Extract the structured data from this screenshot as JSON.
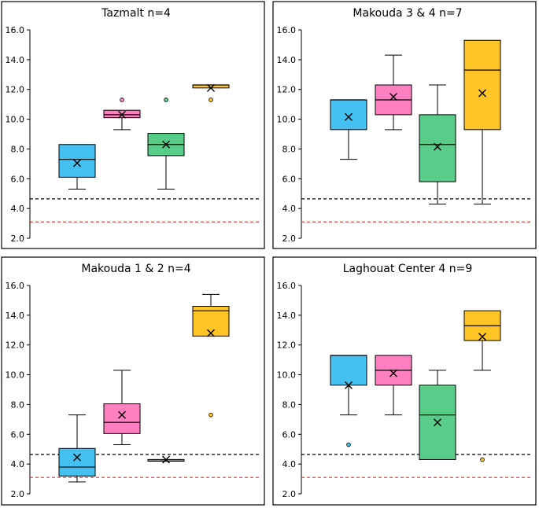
{
  "chart_data": [
    {
      "type": "box",
      "title": "Tazmalt n=4",
      "ylim": [
        2.0,
        16.0
      ],
      "yticks": [
        "2.0",
        "4.0",
        "6.0",
        "8.0",
        "10.0",
        "12.0",
        "14.0",
        "16.0"
      ],
      "reference_lines": [
        {
          "value": 4.65,
          "color": "#000000"
        },
        {
          "value": 3.1,
          "color": "#e8241f"
        }
      ],
      "boxes": [
        {
          "color": "#44c1f0",
          "whisker_low": 5.3,
          "q1": 6.1,
          "median": 7.3,
          "q3": 8.3,
          "whisker_high": 8.3,
          "mean": 7.05,
          "outliers": []
        },
        {
          "color": "#ff80c0",
          "whisker_low": 9.3,
          "q1": 10.1,
          "median": 10.3,
          "q3": 10.6,
          "whisker_high": 10.6,
          "mean": 10.3,
          "outliers": [
            11.3
          ]
        },
        {
          "color": "#58cc88",
          "whisker_low": 5.3,
          "q1": 7.55,
          "median": 8.3,
          "q3": 9.05,
          "whisker_high": 9.05,
          "mean": 8.3,
          "outliers": [
            11.3
          ]
        },
        {
          "color": "#ffc526",
          "whisker_low": 12.1,
          "q1": 12.1,
          "median": 12.3,
          "q3": 12.3,
          "whisker_high": 12.3,
          "mean": 12.1,
          "outliers": [
            11.3
          ]
        }
      ]
    },
    {
      "type": "box",
      "title": "Makouda 3 & 4 n=7",
      "ylim": [
        2.0,
        16.0
      ],
      "yticks": [
        "2.0",
        "4.0",
        "6.0",
        "8.0",
        "10.0",
        "12.0",
        "14.0",
        "16.0"
      ],
      "reference_lines": [
        {
          "value": 4.65,
          "color": "#000000"
        },
        {
          "value": 3.1,
          "color": "#e8241f"
        }
      ],
      "boxes": [
        {
          "color": "#44c1f0",
          "whisker_low": 7.3,
          "q1": 9.3,
          "median": 11.3,
          "q3": 11.3,
          "whisker_high": 11.3,
          "mean": 10.15,
          "outliers": []
        },
        {
          "color": "#ff80c0",
          "whisker_low": 9.3,
          "q1": 10.3,
          "median": 11.3,
          "q3": 12.3,
          "whisker_high": 14.3,
          "mean": 11.5,
          "outliers": []
        },
        {
          "color": "#58cc88",
          "whisker_low": 4.3,
          "q1": 5.8,
          "median": 8.3,
          "q3": 10.3,
          "whisker_high": 12.3,
          "mean": 8.15,
          "outliers": []
        },
        {
          "color": "#ffc526",
          "whisker_low": 4.3,
          "q1": 9.3,
          "median": 13.3,
          "q3": 15.3,
          "whisker_high": 15.3,
          "mean": 11.75,
          "outliers": []
        }
      ]
    },
    {
      "type": "box",
      "title": "Makouda 1 & 2 n=4",
      "ylim": [
        2.0,
        16.0
      ],
      "yticks": [
        "2.0",
        "4.0",
        "6.0",
        "8.0",
        "10.0",
        "12.0",
        "14.0",
        "16.0"
      ],
      "reference_lines": [
        {
          "value": 4.65,
          "color": "#000000"
        },
        {
          "value": 3.1,
          "color": "#e8241f"
        }
      ],
      "boxes": [
        {
          "color": "#44c1f0",
          "whisker_low": 2.8,
          "q1": 3.2,
          "median": 3.8,
          "q3": 5.05,
          "whisker_high": 7.3,
          "mean": 4.45,
          "outliers": []
        },
        {
          "color": "#ff80c0",
          "whisker_low": 5.3,
          "q1": 6.05,
          "median": 6.8,
          "q3": 8.05,
          "whisker_high": 10.3,
          "mean": 7.3,
          "outliers": []
        },
        {
          "color": "#58cc88",
          "whisker_low": 4.3,
          "q1": 4.3,
          "median": 4.3,
          "q3": 4.3,
          "whisker_high": 4.3,
          "mean": 4.3,
          "outliers": []
        },
        {
          "color": "#ffc526",
          "whisker_low": 12.6,
          "q1": 12.6,
          "median": 14.3,
          "q3": 14.6,
          "whisker_high": 15.4,
          "mean": 12.8,
          "outliers": [
            7.3
          ]
        }
      ]
    },
    {
      "type": "box",
      "title": "Laghouat Center 4 n=9",
      "ylim": [
        2.0,
        16.0
      ],
      "yticks": [
        "2.0",
        "4.0",
        "6.0",
        "8.0",
        "10.0",
        "12.0",
        "14.0",
        "16.0"
      ],
      "reference_lines": [
        {
          "value": 4.65,
          "color": "#000000"
        },
        {
          "value": 3.1,
          "color": "#e8241f"
        }
      ],
      "boxes": [
        {
          "color": "#44c1f0",
          "whisker_low": 7.3,
          "q1": 9.3,
          "median": 11.3,
          "q3": 11.3,
          "whisker_high": 11.3,
          "mean": 9.3,
          "outliers": [
            5.3
          ]
        },
        {
          "color": "#ff80c0",
          "whisker_low": 7.3,
          "q1": 9.3,
          "median": 10.3,
          "q3": 11.3,
          "whisker_high": 11.3,
          "mean": 10.1,
          "outliers": []
        },
        {
          "color": "#58cc88",
          "whisker_low": 4.3,
          "q1": 4.3,
          "median": 7.3,
          "q3": 9.3,
          "whisker_high": 10.3,
          "mean": 6.8,
          "outliers": []
        },
        {
          "color": "#ffc526",
          "whisker_low": 10.3,
          "q1": 12.3,
          "median": 13.3,
          "q3": 14.3,
          "whisker_high": 14.3,
          "mean": 12.55,
          "outliers": [
            4.3
          ]
        }
      ]
    }
  ]
}
